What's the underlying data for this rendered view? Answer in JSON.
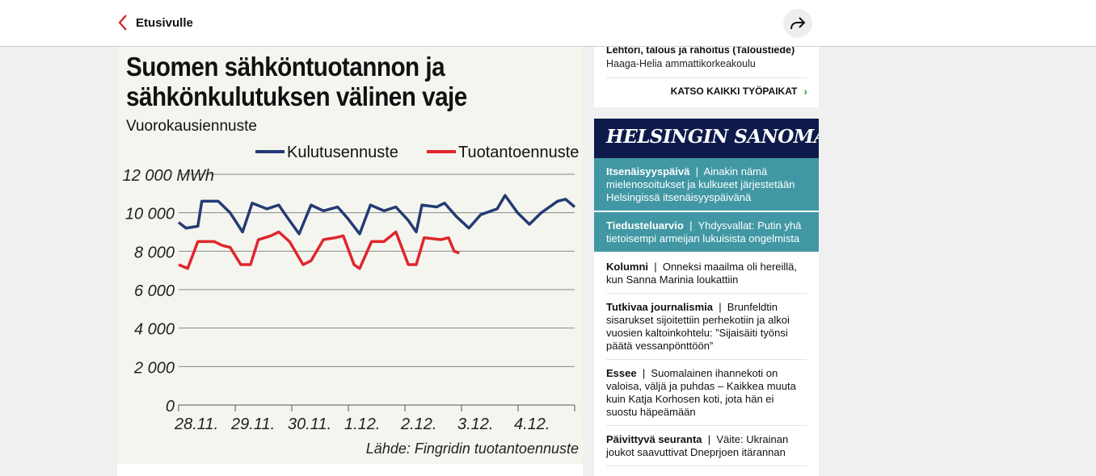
{
  "header": {
    "back_label": "Etusivulle"
  },
  "graphic": {
    "title": "Suomen sähköntuotannon ja sähkönkulutuksen välinen vaje",
    "subtitle": "Vuorokausiennuste",
    "source": "Lähde: Fingridin tuotantoennuste"
  },
  "chart_data": {
    "type": "line",
    "title": "Suomen sähköntuotannon ja sähkönkulutuksen välinen vaje",
    "subtitle": "Vuorokausiennuste",
    "ylabel": "MWh",
    "ylim": [
      0,
      12000
    ],
    "yticks": [
      0,
      2000,
      4000,
      6000,
      8000,
      10000,
      12000
    ],
    "ytick_labels": [
      "0",
      "2 000",
      "4 000",
      "6 000",
      "8 000",
      "10 000",
      "12 000 MWh"
    ],
    "xlim": [
      0,
      7
    ],
    "xtick_labels": [
      "28.11.",
      "29.11.",
      "30.11.",
      "1.12.",
      "2.12.",
      "3.12.",
      "4.12."
    ],
    "grid": true,
    "legend": "top-right",
    "series": [
      {
        "name": "Kulutusennuste",
        "color": "#253b73",
        "points": [
          [
            0,
            9500
          ],
          [
            0.13,
            9200
          ],
          [
            0.34,
            9300
          ],
          [
            0.41,
            10600
          ],
          [
            0.7,
            10600
          ],
          [
            0.91,
            10000
          ],
          [
            1.13,
            9000
          ],
          [
            1.3,
            10500
          ],
          [
            1.56,
            10200
          ],
          [
            1.77,
            10400
          ],
          [
            1.91,
            9800
          ],
          [
            2.13,
            8900
          ],
          [
            2.34,
            10400
          ],
          [
            2.56,
            10100
          ],
          [
            2.81,
            10300
          ],
          [
            2.99,
            9700
          ],
          [
            3.2,
            8900
          ],
          [
            3.39,
            10400
          ],
          [
            3.63,
            10100
          ],
          [
            3.84,
            10300
          ],
          [
            4.06,
            9600
          ],
          [
            4.2,
            9000
          ],
          [
            4.3,
            10400
          ],
          [
            4.56,
            10300
          ],
          [
            4.7,
            10500
          ],
          [
            4.91,
            9800
          ],
          [
            5.13,
            9200
          ],
          [
            5.34,
            9900
          ],
          [
            5.63,
            10200
          ],
          [
            5.77,
            10900
          ],
          [
            5.99,
            10000
          ],
          [
            6.2,
            9400
          ],
          [
            6.41,
            10000
          ],
          [
            6.7,
            10600
          ],
          [
            6.84,
            10700
          ],
          [
            7,
            10300
          ]
        ]
      },
      {
        "name": "Tuotantoennuste",
        "color": "#e0262b",
        "points": [
          [
            0,
            7300
          ],
          [
            0.16,
            7100
          ],
          [
            0.34,
            8500
          ],
          [
            0.63,
            8500
          ],
          [
            0.77,
            8300
          ],
          [
            0.91,
            8200
          ],
          [
            1.1,
            7300
          ],
          [
            1.27,
            7300
          ],
          [
            1.41,
            8600
          ],
          [
            1.63,
            8800
          ],
          [
            1.77,
            9000
          ],
          [
            1.96,
            8500
          ],
          [
            2.2,
            7300
          ],
          [
            2.34,
            7500
          ],
          [
            2.56,
            8600
          ],
          [
            2.77,
            8700
          ],
          [
            2.91,
            8800
          ],
          [
            3.1,
            7300
          ],
          [
            3.2,
            7100
          ],
          [
            3.41,
            8500
          ],
          [
            3.63,
            8500
          ],
          [
            3.84,
            9000
          ],
          [
            4.06,
            7300
          ],
          [
            4.2,
            7300
          ],
          [
            4.34,
            8700
          ],
          [
            4.63,
            8600
          ],
          [
            4.77,
            8700
          ],
          [
            4.87,
            8000
          ],
          [
            4.96,
            7900
          ]
        ]
      }
    ]
  },
  "jobs": {
    "title": "Lehtori, talous ja rahoitus (Taloustiede)",
    "employer": "Haaga-Helia ammattikorkeakoulu",
    "all_link": "KATSO KAIKKI TYÖPAIKAT"
  },
  "hs": {
    "logo": "HELSINGIN SANOMAT",
    "featured": [
      {
        "kicker": "Itsenäisyyspäivä",
        "text": "Ainakin nämä mielenosoitukset ja kulkueet järjestetään Helsingissä itsenäisyyspäivänä"
      },
      {
        "kicker": "Tiedusteluarvio",
        "text": "Yhdysvallat: Putin yhä tietoisempi armeijan lukuisista ongelmista"
      }
    ],
    "items": [
      {
        "kicker": "Kolumni",
        "text": "Onneksi maailma oli hereillä, kun Sanna Marinia loukattiin"
      },
      {
        "kicker": "Tutkivaa journalismia",
        "text": "Brunfeldtin sisarukset sijoitettiin perhekotiin ja alkoi vuosien kaltoinkohtelu: ”Sijaisäiti työnsi päätä vessanpönttöön”"
      },
      {
        "kicker": "Essee",
        "text": "Suomalainen ihannekoti on valoisa, väljä ja puhdas – Kaikkea muuta kuin Katja Korhosen koti, jota hän ei suostu häpeämään"
      },
      {
        "kicker": "Päivittyvä seuranta",
        "text": "Väite: Ukrainan joukot saavuttivat Dneprjoen itärannan"
      }
    ]
  }
}
